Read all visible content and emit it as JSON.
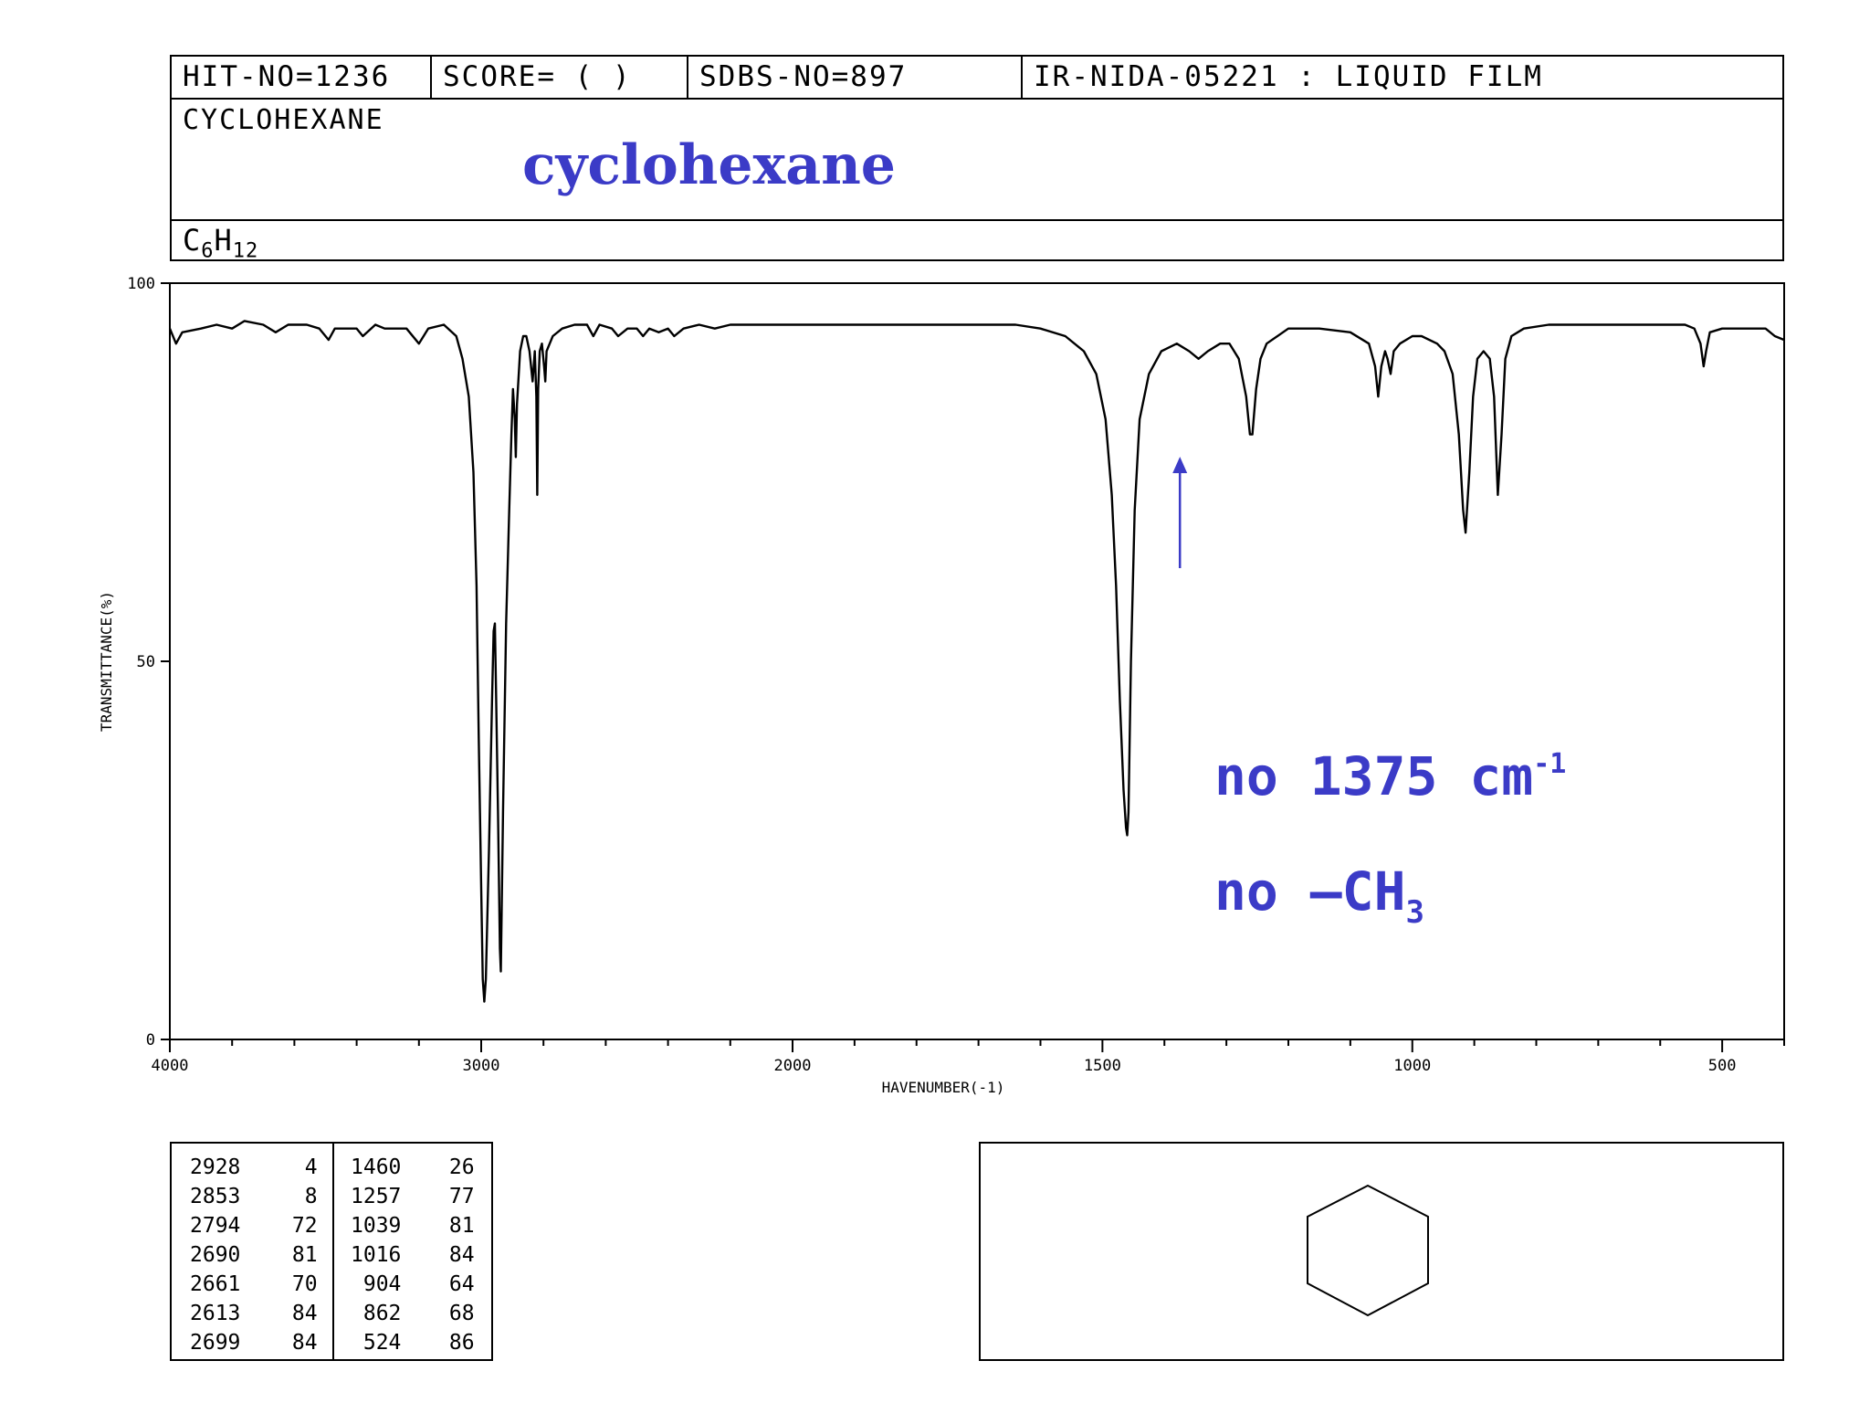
{
  "header": {
    "hit_no": "HIT-NO=1236",
    "score": "SCORE=  (   )",
    "sdbs_no": "SDBS-NO=897",
    "method": "IR-NIDA-05221 : LIQUID FILM",
    "compound_name": "CYCLOHEXANE",
    "annotation_title": "cyclohexane",
    "formula_c": "C",
    "formula_c_sub": "6",
    "formula_h": "H",
    "formula_h_sub": "12"
  },
  "annotations": {
    "line1_text": "no 1375 cm",
    "line1_sup": "-1",
    "line2_text": "no –CH",
    "line2_sub": "3",
    "arrow_wavenumber": 1375,
    "color": "#3b3bc7"
  },
  "chart_data": {
    "type": "line",
    "title": "",
    "xlabel": "HAVENUMBER(-1)",
    "ylabel": "TRANSMITTANCE(%)",
    "xlim": [
      4000,
      400
    ],
    "ylim": [
      0,
      100
    ],
    "xticks": [
      4000,
      3000,
      2000,
      1500,
      1000,
      500
    ],
    "yticks": [
      0,
      50,
      100
    ],
    "grid": false,
    "series": [
      {
        "color": "#000000",
        "points": [
          [
            4000,
            94
          ],
          [
            3980,
            92
          ],
          [
            3960,
            93.5
          ],
          [
            3900,
            94
          ],
          [
            3850,
            94.5
          ],
          [
            3800,
            94
          ],
          [
            3760,
            95
          ],
          [
            3700,
            94.5
          ],
          [
            3660,
            93.5
          ],
          [
            3620,
            94.5
          ],
          [
            3560,
            94.5
          ],
          [
            3520,
            94
          ],
          [
            3490,
            92.5
          ],
          [
            3470,
            94
          ],
          [
            3400,
            94
          ],
          [
            3380,
            93
          ],
          [
            3340,
            94.5
          ],
          [
            3310,
            94
          ],
          [
            3270,
            94
          ],
          [
            3240,
            94
          ],
          [
            3200,
            92
          ],
          [
            3170,
            94
          ],
          [
            3120,
            94.5
          ],
          [
            3080,
            93
          ],
          [
            3060,
            90
          ],
          [
            3040,
            85
          ],
          [
            3025,
            75
          ],
          [
            3015,
            60
          ],
          [
            3008,
            40
          ],
          [
            3000,
            20
          ],
          [
            2995,
            8
          ],
          [
            2990,
            5
          ],
          [
            2985,
            8
          ],
          [
            2975,
            25
          ],
          [
            2965,
            45
          ],
          [
            2960,
            54
          ],
          [
            2956,
            55
          ],
          [
            2952,
            45
          ],
          [
            2946,
            30
          ],
          [
            2940,
            12
          ],
          [
            2937,
            9
          ],
          [
            2930,
            30
          ],
          [
            2920,
            55
          ],
          [
            2910,
            70
          ],
          [
            2903,
            80
          ],
          [
            2898,
            86
          ],
          [
            2892,
            82
          ],
          [
            2889,
            77
          ],
          [
            2885,
            84
          ],
          [
            2875,
            91
          ],
          [
            2865,
            93
          ],
          [
            2855,
            93
          ],
          [
            2845,
            91
          ],
          [
            2835,
            87
          ],
          [
            2828,
            91
          ],
          [
            2823,
            85
          ],
          [
            2820,
            72
          ],
          [
            2817,
            86
          ],
          [
            2812,
            91
          ],
          [
            2805,
            92
          ],
          [
            2798,
            89
          ],
          [
            2794,
            87
          ],
          [
            2790,
            91
          ],
          [
            2770,
            93
          ],
          [
            2740,
            94
          ],
          [
            2700,
            94.5
          ],
          [
            2660,
            94.5
          ],
          [
            2640,
            93
          ],
          [
            2620,
            94.5
          ],
          [
            2580,
            94
          ],
          [
            2560,
            93
          ],
          [
            2530,
            94
          ],
          [
            2500,
            94
          ],
          [
            2480,
            93
          ],
          [
            2460,
            94
          ],
          [
            2430,
            93.5
          ],
          [
            2400,
            94
          ],
          [
            2380,
            93
          ],
          [
            2350,
            94
          ],
          [
            2300,
            94.5
          ],
          [
            2250,
            94
          ],
          [
            2200,
            94.5
          ],
          [
            2100,
            94.5
          ],
          [
            2000,
            94.5
          ],
          [
            1900,
            94.5
          ],
          [
            1800,
            94.5
          ],
          [
            1700,
            94.5
          ],
          [
            1640,
            94.5
          ],
          [
            1600,
            94
          ],
          [
            1560,
            93
          ],
          [
            1530,
            91
          ],
          [
            1510,
            88
          ],
          [
            1495,
            82
          ],
          [
            1485,
            72
          ],
          [
            1478,
            60
          ],
          [
            1472,
            45
          ],
          [
            1466,
            33
          ],
          [
            1462,
            28
          ],
          [
            1460,
            27
          ],
          [
            1458,
            30
          ],
          [
            1454,
            50
          ],
          [
            1448,
            70
          ],
          [
            1440,
            82
          ],
          [
            1425,
            88
          ],
          [
            1405,
            91
          ],
          [
            1380,
            92
          ],
          [
            1360,
            91
          ],
          [
            1345,
            90
          ],
          [
            1330,
            91
          ],
          [
            1310,
            92
          ],
          [
            1295,
            92
          ],
          [
            1280,
            90
          ],
          [
            1268,
            85
          ],
          [
            1262,
            80
          ],
          [
            1258,
            80
          ],
          [
            1252,
            86
          ],
          [
            1245,
            90
          ],
          [
            1235,
            92
          ],
          [
            1200,
            94
          ],
          [
            1150,
            94
          ],
          [
            1100,
            93.5
          ],
          [
            1070,
            92
          ],
          [
            1060,
            89
          ],
          [
            1055,
            85
          ],
          [
            1050,
            89
          ],
          [
            1044,
            91
          ],
          [
            1040,
            90
          ],
          [
            1035,
            88
          ],
          [
            1030,
            91
          ],
          [
            1020,
            92
          ],
          [
            1000,
            93
          ],
          [
            985,
            93
          ],
          [
            960,
            92
          ],
          [
            948,
            91
          ],
          [
            935,
            88
          ],
          [
            925,
            80
          ],
          [
            918,
            70
          ],
          [
            914,
            67
          ],
          [
            908,
            75
          ],
          [
            902,
            85
          ],
          [
            895,
            90
          ],
          [
            885,
            91
          ],
          [
            875,
            90
          ],
          [
            868,
            85
          ],
          [
            862,
            72
          ],
          [
            856,
            80
          ],
          [
            850,
            90
          ],
          [
            840,
            93
          ],
          [
            820,
            94
          ],
          [
            780,
            94.5
          ],
          [
            700,
            94.5
          ],
          [
            620,
            94.5
          ],
          [
            560,
            94.5
          ],
          [
            545,
            94
          ],
          [
            535,
            92
          ],
          [
            530,
            89
          ],
          [
            526,
            91
          ],
          [
            520,
            93.5
          ],
          [
            500,
            94
          ],
          [
            480,
            94
          ],
          [
            450,
            94
          ],
          [
            430,
            94
          ],
          [
            415,
            93
          ],
          [
            400,
            92.5
          ]
        ]
      }
    ]
  },
  "peak_table": {
    "left": [
      [
        "2928",
        "4"
      ],
      [
        "2853",
        "8"
      ],
      [
        "2794",
        "72"
      ],
      [
        "2690",
        "81"
      ],
      [
        "2661",
        "70"
      ],
      [
        "2613",
        "84"
      ],
      [
        "2699",
        "84"
      ]
    ],
    "right": [
      [
        "1460",
        "26"
      ],
      [
        "1257",
        "77"
      ],
      [
        "1039",
        "81"
      ],
      [
        "1016",
        "84"
      ],
      [
        "904",
        "64"
      ],
      [
        "862",
        "68"
      ],
      [
        "524",
        "86"
      ]
    ]
  },
  "structure": {
    "shape": "hexagon"
  }
}
